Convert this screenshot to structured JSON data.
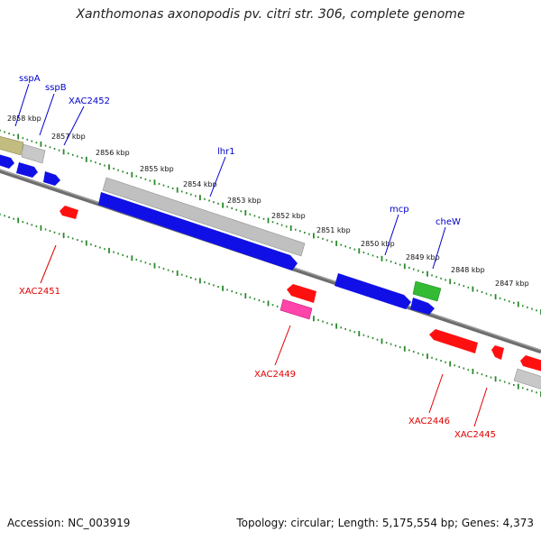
{
  "title": "Xanthomonas axonopodis pv. citri str. 306, complete genome",
  "footer": {
    "accession": "Accession: NC_003919",
    "summary": "Topology: circular; Length: 5,175,554 bp; Genes: 4,373"
  },
  "colors": {
    "forward_label": "#0000cc",
    "reverse_label": "#e00000",
    "backbone": "#7a7a7a",
    "ticks": "#2a8a2a",
    "blue_gene": "#1010e6",
    "red_gene": "#ff1010",
    "gray_gene": "#c0c0c0",
    "olive_gene": "#c2bc80",
    "green_gene": "#33bb33",
    "magenta_gene": "#ff44aa"
  },
  "kbp_labels": [
    "2858 kbp",
    "2857 kbp",
    "2856 kbp",
    "2855 kbp",
    "2854 kbp",
    "2853 kbp",
    "2852 kbp",
    "2851 kbp",
    "2850 kbp",
    "2849 kbp",
    "2848 kbp",
    "2847 kbp"
  ],
  "forward_gene_labels": [
    "sspA",
    "sspB",
    "XAC2452",
    "lhr1",
    "mcp",
    "cheW"
  ],
  "reverse_gene_labels": [
    "XAC2451",
    "XAC2449",
    "XAC2446",
    "XAC2445"
  ]
}
